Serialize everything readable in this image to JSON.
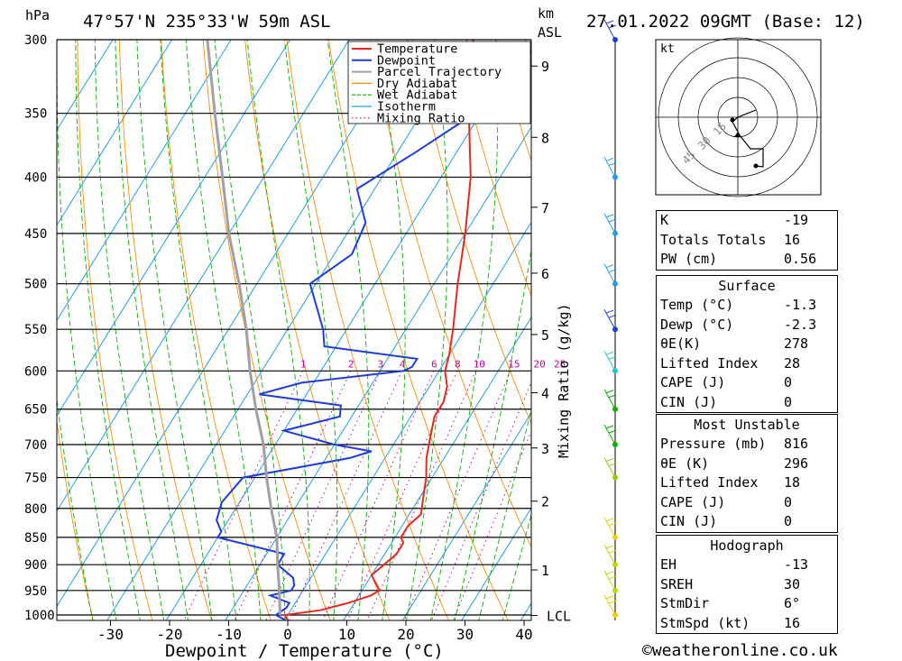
{
  "header": {
    "pressure_unit": "hPa",
    "location": "47°57'N  235°33'W  59m  ASL",
    "km_label": "km",
    "asl_label": "ASL",
    "datetime": "27.01.2022  09GMT  (Base: 12)"
  },
  "legend": [
    "Temperature",
    "Dewpoint",
    "Parcel Trajectory",
    "Dry Adiabat",
    "Wet Adiabat",
    "Isotherm",
    "Mixing Ratio"
  ],
  "colors": {
    "temperature": "#e8281e",
    "dewpoint": "#1e3cdc",
    "parcel": "#a0a0a0",
    "dry_adiabat": "#ff8c00",
    "wet_adiabat": "#00b400",
    "isotherm": "#1ea0e6",
    "mixing_ratio": "#c8009c"
  },
  "chart_data": {
    "type": "line",
    "xlabel": "Dewpoint / Temperature (°C)",
    "ylabel": "hPa",
    "right_label": "Mixing Ratio (g/kg)",
    "pressure_ticks": [
      300,
      350,
      400,
      450,
      500,
      550,
      600,
      650,
      700,
      750,
      800,
      850,
      900,
      950,
      1000
    ],
    "temp_ticks": [
      -30,
      -20,
      -10,
      0,
      10,
      20,
      30,
      40
    ],
    "xlim": [
      -40,
      40
    ],
    "ylim": [
      1000,
      300
    ],
    "km_ticks": [
      {
        "label": "9",
        "p": 317
      },
      {
        "label": "8",
        "p": 368
      },
      {
        "label": "7",
        "p": 426
      },
      {
        "label": "6",
        "p": 489
      },
      {
        "label": "5",
        "p": 556
      },
      {
        "label": "4",
        "p": 628
      },
      {
        "label": "3",
        "p": 705
      },
      {
        "label": "2",
        "p": 788
      },
      {
        "label": "1",
        "p": 910
      },
      {
        "label": "LCL",
        "p": 1001
      }
    ],
    "mixing_ratio_labels": [
      "1",
      "2",
      "3",
      "4",
      "6",
      "8",
      "10",
      "15",
      "20",
      "25"
    ],
    "series": [
      {
        "name": "Temperature",
        "points": [
          [
            1010,
            0.5
          ],
          [
            1000,
            -0.5
          ],
          [
            990,
            5
          ],
          [
            975,
            9
          ],
          [
            960,
            12
          ],
          [
            950,
            13
          ],
          [
            940,
            12
          ],
          [
            920,
            10
          ],
          [
            900,
            11
          ],
          [
            880,
            12
          ],
          [
            860,
            12
          ],
          [
            850,
            11
          ],
          [
            830,
            11
          ],
          [
            810,
            12
          ],
          [
            790,
            11
          ],
          [
            770,
            10
          ],
          [
            750,
            9
          ],
          [
            720,
            7
          ],
          [
            700,
            6
          ],
          [
            680,
            5
          ],
          [
            660,
            4
          ],
          [
            640,
            4
          ],
          [
            620,
            3
          ],
          [
            600,
            1
          ],
          [
            580,
            0
          ],
          [
            550,
            -2
          ],
          [
            500,
            -6
          ],
          [
            450,
            -10
          ],
          [
            400,
            -15
          ],
          [
            350,
            -22
          ],
          [
            315,
            -27
          ],
          [
            300,
            -29
          ]
        ]
      },
      {
        "name": "Dewpoint",
        "points": [
          [
            1010,
            0
          ],
          [
            1000,
            -2
          ],
          [
            985,
            -1
          ],
          [
            975,
            -1
          ],
          [
            960,
            -5
          ],
          [
            950,
            -2
          ],
          [
            940,
            -2
          ],
          [
            925,
            -3
          ],
          [
            900,
            -7
          ],
          [
            880,
            -7
          ],
          [
            850,
            -20
          ],
          [
            840,
            -20
          ],
          [
            820,
            -22
          ],
          [
            790,
            -23
          ],
          [
            750,
            -22
          ],
          [
            720,
            -6
          ],
          [
            710,
            -3
          ],
          [
            700,
            -10
          ],
          [
            680,
            -20
          ],
          [
            660,
            -12
          ],
          [
            645,
            -13
          ],
          [
            630,
            -28
          ],
          [
            615,
            -22
          ],
          [
            600,
            -6
          ],
          [
            595,
            -5
          ],
          [
            585,
            -5
          ],
          [
            570,
            -22
          ],
          [
            550,
            -24
          ],
          [
            500,
            -31
          ],
          [
            470,
            -27
          ],
          [
            440,
            -28
          ],
          [
            410,
            -33
          ],
          [
            380,
            -27
          ],
          [
            350,
            -21
          ],
          [
            320,
            -18
          ],
          [
            300,
            -18
          ]
        ]
      },
      {
        "name": "Parcel Trajectory",
        "points": [
          [
            1000,
            -1.3
          ],
          [
            950,
            -4
          ],
          [
            900,
            -7
          ],
          [
            850,
            -10
          ],
          [
            800,
            -14
          ],
          [
            750,
            -18
          ],
          [
            700,
            -22
          ],
          [
            650,
            -27
          ],
          [
            600,
            -32
          ],
          [
            550,
            -37
          ],
          [
            500,
            -43
          ],
          [
            450,
            -50
          ],
          [
            400,
            -57
          ],
          [
            350,
            -65
          ],
          [
            300,
            -74
          ]
        ]
      }
    ],
    "wind_barbs_at_p": [
      300,
      400,
      450,
      500,
      550,
      600,
      650,
      700,
      750,
      850,
      900,
      950,
      1000
    ],
    "hodograph": {
      "unit": "kt",
      "ring_labels": [
        "15",
        "30",
        "45"
      ]
    }
  },
  "tables": {
    "indices": [
      {
        "label": "K",
        "value": "-19"
      },
      {
        "label": "Totals Totals",
        "value": "16"
      },
      {
        "label": "PW (cm)",
        "value": "0.56"
      }
    ],
    "surface": {
      "title": "Surface",
      "rows": [
        {
          "label": "Temp (°C)",
          "value": "-1.3"
        },
        {
          "label": "Dewp (°C)",
          "value": "-2.3"
        },
        {
          "label": "θE(K)",
          "value": "278"
        },
        {
          "label": "Lifted Index",
          "value": "28"
        },
        {
          "label": "CAPE (J)",
          "value": "0"
        },
        {
          "label": "CIN (J)",
          "value": "0"
        }
      ]
    },
    "most_unstable": {
      "title": "Most Unstable",
      "rows": [
        {
          "label": "Pressure (mb)",
          "value": "816"
        },
        {
          "label": "θE (K)",
          "value": "296"
        },
        {
          "label": "Lifted Index",
          "value": "18"
        },
        {
          "label": "CAPE (J)",
          "value": "0"
        },
        {
          "label": "CIN (J)",
          "value": "0"
        }
      ]
    },
    "hodograph": {
      "title": "Hodograph",
      "rows": [
        {
          "label": "EH",
          "value": "-13"
        },
        {
          "label": "SREH",
          "value": "30"
        },
        {
          "label": "StmDir",
          "value": "6°"
        },
        {
          "label": "StmSpd (kt)",
          "value": "16"
        }
      ]
    }
  },
  "copyright": "©weatheronline.co.uk"
}
